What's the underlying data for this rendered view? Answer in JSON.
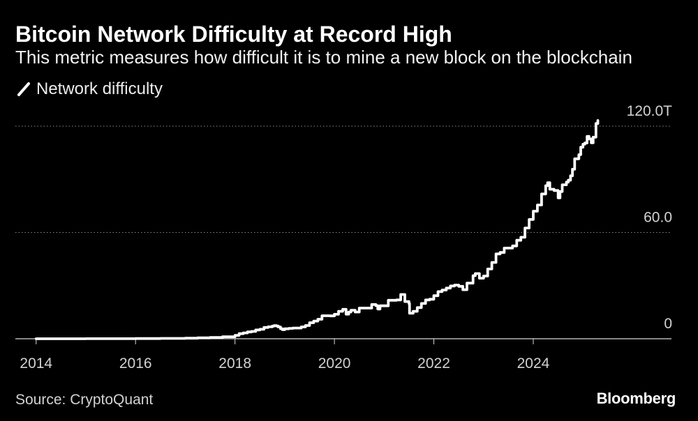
{
  "chart_data": {
    "type": "line",
    "title": "Bitcoin Network Difficulty at Record High",
    "subtitle": "This metric measures how difficult it is to mine a new block on the blockchain",
    "legend": {
      "position": "top-left",
      "icon": "diagonal-line-icon"
    },
    "x_tick_labels": [
      "2014",
      "2016",
      "2018",
      "2020",
      "2022",
      "2024"
    ],
    "y_ticks": [
      0,
      60,
      120
    ],
    "y_tick_labels": [
      "0",
      "60.0",
      "120.0T"
    ],
    "xlim": [
      "2013-07-31",
      "2026-10-12"
    ],
    "ylim": [
      0,
      120
    ],
    "grid": true,
    "series": [
      {
        "name": "Network difficulty",
        "color": "#ffffff",
        "x": [
          "2014-01-01",
          "2014-07-01",
          "2015-01-01",
          "2015-07-01",
          "2016-01-01",
          "2016-07-01",
          "2017-01-01",
          "2017-04-01",
          "2017-07-01",
          "2017-10-01",
          "2018-01-01",
          "2018-02-01",
          "2018-03-01",
          "2018-04-01",
          "2018-05-01",
          "2018-06-01",
          "2018-07-01",
          "2018-08-01",
          "2018-09-01",
          "2018-10-01",
          "2018-10-15",
          "2018-11-01",
          "2018-11-15",
          "2018-12-01",
          "2018-12-15",
          "2019-01-01",
          "2019-02-01",
          "2019-03-01",
          "2019-04-01",
          "2019-05-01",
          "2019-06-01",
          "2019-07-01",
          "2019-08-01",
          "2019-09-01",
          "2019-10-01",
          "2019-11-01",
          "2019-12-01",
          "2020-01-01",
          "2020-02-01",
          "2020-03-01",
          "2020-03-26",
          "2020-04-15",
          "2020-05-01",
          "2020-06-01",
          "2020-07-01",
          "2020-08-01",
          "2020-09-01",
          "2020-10-01",
          "2020-11-01",
          "2020-11-15",
          "2020-12-01",
          "2021-01-01",
          "2021-02-01",
          "2021-03-01",
          "2021-04-01",
          "2021-05-01",
          "2021-05-15",
          "2021-06-01",
          "2021-07-01",
          "2021-07-05",
          "2021-08-01",
          "2021-09-01",
          "2021-10-01",
          "2021-11-01",
          "2021-12-01",
          "2022-01-01",
          "2022-02-01",
          "2022-03-01",
          "2022-04-01",
          "2022-05-01",
          "2022-06-01",
          "2022-07-01",
          "2022-08-01",
          "2022-09-01",
          "2022-10-01",
          "2022-10-15",
          "2022-11-01",
          "2022-12-01",
          "2023-01-01",
          "2023-02-01",
          "2023-03-01",
          "2023-04-01",
          "2023-05-01",
          "2023-06-01",
          "2023-07-01",
          "2023-08-01",
          "2023-09-01",
          "2023-10-01",
          "2023-11-01",
          "2023-12-01",
          "2024-01-01",
          "2024-02-01",
          "2024-03-01",
          "2024-04-01",
          "2024-04-15",
          "2024-05-01",
          "2024-06-01",
          "2024-07-01",
          "2024-07-15",
          "2024-08-01",
          "2024-09-01",
          "2024-09-15",
          "2024-10-01",
          "2024-10-15",
          "2024-11-01",
          "2024-12-01",
          "2024-12-15",
          "2025-01-01",
          "2025-01-15",
          "2025-02-01",
          "2025-02-15",
          "2025-03-01",
          "2025-03-15",
          "2025-04-05",
          "2025-04-19"
        ],
        "y": [
          0.0014,
          0.017,
          0.041,
          0.05,
          0.11,
          0.21,
          0.32,
          0.5,
          0.71,
          1.12,
          1.93,
          2.87,
          3.29,
          3.84,
          4.14,
          4.94,
          5.36,
          6.39,
          6.73,
          7.15,
          7.45,
          7.18,
          6.65,
          5.65,
          5.11,
          5.62,
          5.88,
          6.07,
          6.07,
          6.7,
          7.46,
          9.06,
          9.99,
          11.0,
          13.0,
          13.0,
          12.9,
          13.8,
          15.5,
          16.6,
          13.9,
          15.1,
          16.1,
          15.1,
          17.3,
          17.3,
          17.3,
          19.3,
          18.7,
          16.8,
          18.6,
          18.6,
          21.7,
          21.7,
          21.9,
          25.0,
          25.0,
          21.0,
          19.9,
          14.4,
          15.5,
          17.6,
          19.9,
          21.9,
          22.3,
          24.3,
          26.6,
          27.5,
          28.6,
          29.8,
          30.3,
          29.6,
          27.7,
          31.4,
          31.4,
          35.6,
          36.8,
          34.2,
          35.4,
          39.4,
          43.1,
          47.9,
          48.7,
          51.2,
          51.2,
          52.4,
          55.6,
          57.3,
          62.5,
          67.3,
          72.0,
          75.5,
          81.7,
          86.4,
          88.1,
          84.4,
          83.7,
          79.5,
          83.1,
          86.9,
          88.4,
          89.5,
          92.0,
          95.7,
          101.6,
          103.9,
          108.1,
          109.8,
          110.5,
          114.2,
          112.8,
          110.6,
          113.8,
          121.5,
          123.2
        ]
      }
    ]
  },
  "source": "Source: CryptoQuant",
  "brand": "Bloomberg",
  "colors": {
    "background": "#000000",
    "text": "#ffffff",
    "line": "#ffffff",
    "grid": "#8a8a8a",
    "axis": "#d9d9d9"
  }
}
